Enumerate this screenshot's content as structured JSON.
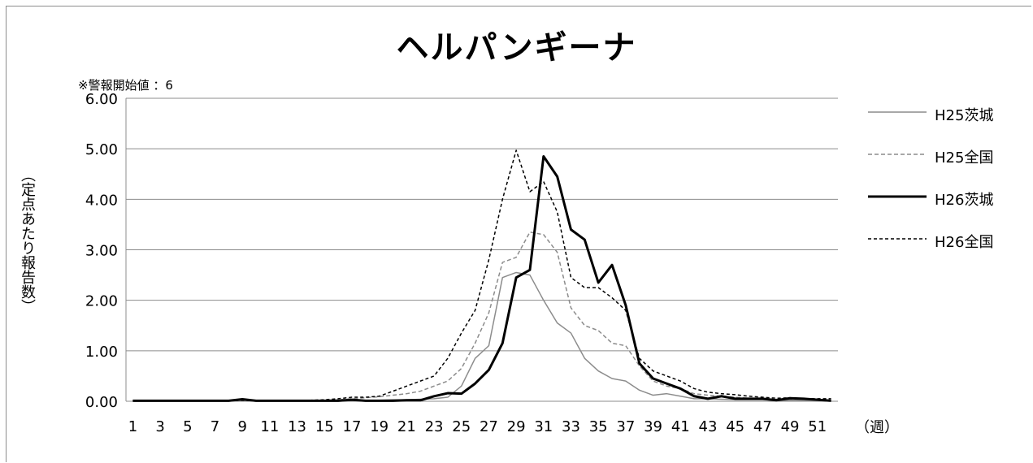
{
  "chart_data": {
    "type": "line",
    "title": "ヘルパンギーナ",
    "note": "※警報開始値 ：6",
    "ylabel": "（定点あたり報告数）",
    "xunit": "（週）",
    "ylim": [
      0,
      6
    ],
    "yticks": [
      "0.00",
      "1.00",
      "2.00",
      "3.00",
      "4.00",
      "5.00",
      "6.00"
    ],
    "xtick_labels": [
      "1",
      "3",
      "5",
      "7",
      "9",
      "11",
      "13",
      "15",
      "17",
      "19",
      "21",
      "23",
      "25",
      "27",
      "29",
      "31",
      "33",
      "35",
      "37",
      "39",
      "41",
      "43",
      "45",
      "47",
      "49",
      "51"
    ],
    "grid": true,
    "legend_position": "right",
    "x": [
      1,
      2,
      3,
      4,
      5,
      6,
      7,
      8,
      9,
      10,
      11,
      12,
      13,
      14,
      15,
      16,
      17,
      18,
      19,
      20,
      21,
      22,
      23,
      24,
      25,
      26,
      27,
      28,
      29,
      30,
      31,
      32,
      33,
      34,
      35,
      36,
      37,
      38,
      39,
      40,
      41,
      42,
      43,
      44,
      45,
      46,
      47,
      48,
      49,
      50,
      51,
      52
    ],
    "series": [
      {
        "name": "H25茨城",
        "color": "#8c8c8c",
        "dash": "solid",
        "width": 1.5,
        "values": [
          0.01,
          0.01,
          0.01,
          0.01,
          0.01,
          0.01,
          0.01,
          0.01,
          0.02,
          0.01,
          0.01,
          0.01,
          0.01,
          0.01,
          0.01,
          0.02,
          0.02,
          0.02,
          0.02,
          0.03,
          0.03,
          0.04,
          0.05,
          0.08,
          0.3,
          0.85,
          1.1,
          2.45,
          2.55,
          2.5,
          2.0,
          1.55,
          1.35,
          0.85,
          0.6,
          0.45,
          0.4,
          0.22,
          0.12,
          0.15,
          0.1,
          0.05,
          0.05,
          0.04,
          0.03,
          0.03,
          0.03,
          0.02,
          0.02,
          0.02,
          0.02,
          0.01
        ]
      },
      {
        "name": "H25全国",
        "color": "#8c8c8c",
        "dash": "5,3",
        "width": 1.5,
        "values": [
          0.01,
          0.01,
          0.01,
          0.01,
          0.01,
          0.01,
          0.01,
          0.01,
          0.01,
          0.01,
          0.01,
          0.01,
          0.01,
          0.01,
          0.02,
          0.03,
          0.05,
          0.07,
          0.09,
          0.12,
          0.15,
          0.2,
          0.3,
          0.4,
          0.65,
          1.15,
          1.75,
          2.75,
          2.85,
          3.35,
          3.3,
          2.95,
          1.85,
          1.5,
          1.4,
          1.15,
          1.1,
          0.7,
          0.4,
          0.3,
          0.25,
          0.15,
          0.12,
          0.1,
          0.08,
          0.06,
          0.05,
          0.04,
          0.04,
          0.03,
          0.03,
          0.02
        ]
      },
      {
        "name": "H26茨城",
        "color": "#000000",
        "dash": "solid",
        "width": 3,
        "values": [
          0.01,
          0.01,
          0.01,
          0.01,
          0.01,
          0.01,
          0.01,
          0.01,
          0.04,
          0.01,
          0.01,
          0.01,
          0.01,
          0.01,
          0.01,
          0.01,
          0.03,
          0.01,
          0.01,
          0.01,
          0.02,
          0.02,
          0.1,
          0.16,
          0.15,
          0.35,
          0.62,
          1.15,
          2.45,
          2.6,
          4.85,
          4.45,
          3.4,
          3.2,
          2.35,
          2.7,
          1.9,
          0.75,
          0.45,
          0.35,
          0.25,
          0.1,
          0.05,
          0.1,
          0.05,
          0.05,
          0.05,
          0.02,
          0.06,
          0.05,
          0.03,
          0.01
        ]
      },
      {
        "name": "H26全国",
        "color": "#000000",
        "dash": "4,3",
        "width": 1.5,
        "values": [
          0.01,
          0.01,
          0.01,
          0.01,
          0.01,
          0.01,
          0.01,
          0.01,
          0.02,
          0.01,
          0.01,
          0.01,
          0.01,
          0.02,
          0.03,
          0.05,
          0.08,
          0.08,
          0.1,
          0.2,
          0.3,
          0.4,
          0.5,
          0.85,
          1.35,
          1.8,
          2.8,
          4.0,
          4.97,
          4.15,
          4.35,
          3.75,
          2.45,
          2.25,
          2.25,
          2.05,
          1.8,
          0.85,
          0.6,
          0.5,
          0.4,
          0.25,
          0.18,
          0.15,
          0.13,
          0.1,
          0.08,
          0.06,
          0.07,
          0.05,
          0.05,
          0.05
        ]
      }
    ]
  }
}
